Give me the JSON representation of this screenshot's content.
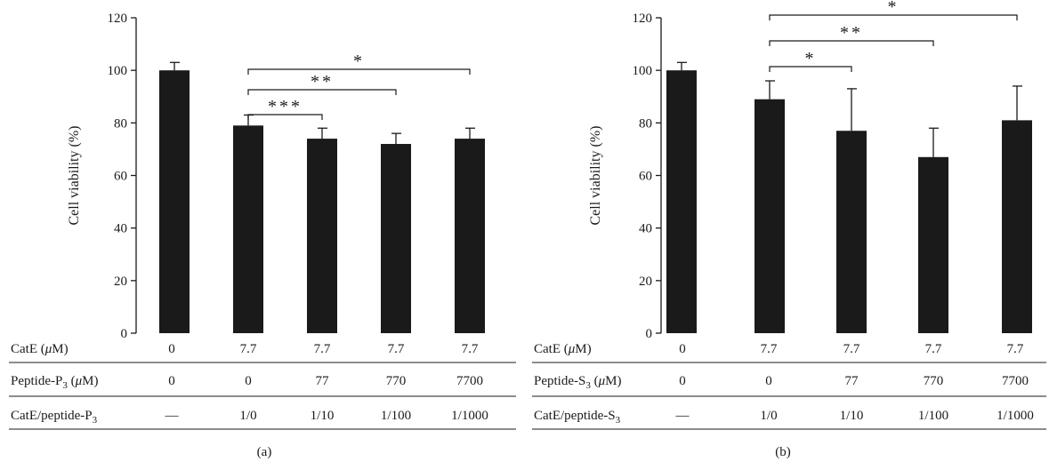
{
  "chart_data": [
    {
      "panel_label": "(a)",
      "type": "bar",
      "ylabel": "Cell viability (%)",
      "ylim": [
        0,
        120
      ],
      "yticks": [
        "0",
        "20",
        "40",
        "60",
        "80",
        "100",
        "120"
      ],
      "values": [
        100,
        79,
        74,
        72,
        74
      ],
      "errors": [
        3,
        4,
        4,
        4,
        4
      ],
      "table_rows": [
        {
          "label_pre": "CatE (",
          "label_italic": "μ",
          "label_post": "M)",
          "label_sub": "",
          "label_end": "",
          "cells": [
            "0",
            "7.7",
            "7.7",
            "7.7",
            "7.7"
          ]
        },
        {
          "label_pre": "Peptide-P",
          "label_sub": "3",
          "label_mid": " (",
          "label_italic": "μ",
          "label_post": "M)",
          "label_end": "",
          "cells": [
            "0",
            "0",
            "77",
            "770",
            "7700"
          ]
        },
        {
          "label_pre": "CatE/peptide-P",
          "label_sub": "3",
          "label_mid": "",
          "label_italic": "",
          "label_post": "",
          "label_end": "",
          "cells": [
            "—",
            "1/0",
            "1/10",
            "1/100",
            "1/1000"
          ]
        }
      ],
      "significance": [
        {
          "from": 1,
          "to": 2,
          "stars": "***"
        },
        {
          "from": 1,
          "to": 3,
          "stars": "**"
        },
        {
          "from": 1,
          "to": 4,
          "stars": "*"
        }
      ]
    },
    {
      "panel_label": "(b)",
      "type": "bar",
      "ylabel": "Cell viability (%)",
      "ylim": [
        0,
        120
      ],
      "yticks": [
        "0",
        "20",
        "40",
        "60",
        "80",
        "100",
        "120"
      ],
      "values": [
        100,
        89,
        77,
        67,
        81
      ],
      "errors": [
        3,
        7,
        16,
        11,
        13
      ],
      "table_rows": [
        {
          "label_pre": "CatE (",
          "label_italic": "μ",
          "label_post": "M)",
          "label_sub": "",
          "label_end": "",
          "cells": [
            "0",
            "7.7",
            "7.7",
            "7.7",
            "7.7"
          ]
        },
        {
          "label_pre": "Peptide-S",
          "label_sub": "3",
          "label_mid": " (",
          "label_italic": "μ",
          "label_post": "M)",
          "label_end": "",
          "cells": [
            "0",
            "0",
            "77",
            "770",
            "7700"
          ]
        },
        {
          "label_pre": "CatE/peptide-S",
          "label_sub": "3",
          "label_mid": "",
          "label_italic": "",
          "label_post": "",
          "label_end": "",
          "cells": [
            "—",
            "1/0",
            "1/10",
            "1/100",
            "1/1000"
          ]
        }
      ],
      "significance": [
        {
          "from": 1,
          "to": 2,
          "stars": "*"
        },
        {
          "from": 1,
          "to": 3,
          "stars": "**"
        },
        {
          "from": 1,
          "to": 4,
          "stars": "*"
        }
      ]
    }
  ]
}
